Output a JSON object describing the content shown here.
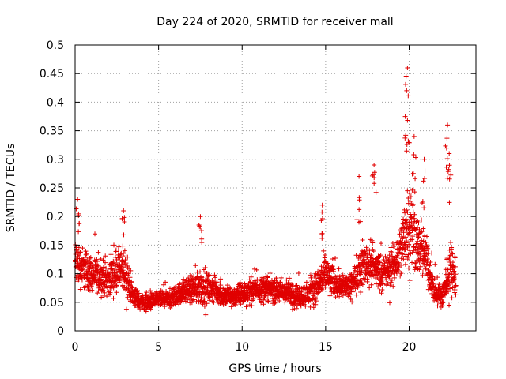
{
  "chart_data": {
    "type": "scatter",
    "title": "Day 224 of 2020, SRMTID for receiver mall",
    "xlabel": "GPS time / hours",
    "ylabel": "SRMTID / TECUs",
    "xlim": [
      0,
      24
    ],
    "ylim": [
      0,
      0.5
    ],
    "xticks": [
      0,
      5,
      10,
      15,
      20
    ],
    "yticks": [
      0,
      0.05,
      0.1,
      0.15,
      0.2,
      0.25,
      0.3,
      0.35,
      0.4,
      0.45,
      0.5
    ],
    "grid": true,
    "marker": "+",
    "color": "#e00000",
    "envelope": {
      "x": [
        0.0,
        0.5,
        1.0,
        1.5,
        2.0,
        2.5,
        3.0,
        3.5,
        4.0,
        4.5,
        5.0,
        5.5,
        6.0,
        6.5,
        7.0,
        7.5,
        8.0,
        8.5,
        9.0,
        9.5,
        10.0,
        10.5,
        11.0,
        11.5,
        12.0,
        12.5,
        13.0,
        13.5,
        14.0,
        14.5,
        15.0,
        15.5,
        16.0,
        16.5,
        17.0,
        17.5,
        18.0,
        18.5,
        19.0,
        19.5,
        20.0,
        20.5,
        21.0,
        21.5,
        22.0,
        22.5,
        22.8
      ],
      "mean": [
        0.12,
        0.11,
        0.1,
        0.095,
        0.09,
        0.11,
        0.1,
        0.06,
        0.05,
        0.05,
        0.055,
        0.055,
        0.06,
        0.07,
        0.075,
        0.08,
        0.075,
        0.07,
        0.06,
        0.06,
        0.065,
        0.07,
        0.075,
        0.075,
        0.07,
        0.068,
        0.065,
        0.06,
        0.065,
        0.08,
        0.1,
        0.085,
        0.08,
        0.075,
        0.11,
        0.12,
        0.11,
        0.1,
        0.11,
        0.14,
        0.2,
        0.15,
        0.13,
        0.07,
        0.06,
        0.12,
        0.09
      ],
      "spread": [
        0.06,
        0.05,
        0.045,
        0.04,
        0.04,
        0.05,
        0.05,
        0.025,
        0.02,
        0.02,
        0.02,
        0.02,
        0.025,
        0.03,
        0.035,
        0.05,
        0.035,
        0.03,
        0.025,
        0.025,
        0.03,
        0.03,
        0.03,
        0.03,
        0.03,
        0.03,
        0.03,
        0.025,
        0.03,
        0.04,
        0.05,
        0.035,
        0.03,
        0.03,
        0.05,
        0.06,
        0.05,
        0.04,
        0.05,
        0.07,
        0.12,
        0.07,
        0.06,
        0.03,
        0.03,
        0.07,
        0.04
      ]
    },
    "peaks": [
      {
        "x": 0.15,
        "y": 0.23
      },
      {
        "x": 2.9,
        "y": 0.21
      },
      {
        "x": 7.5,
        "y": 0.2
      },
      {
        "x": 14.8,
        "y": 0.22
      },
      {
        "x": 17.0,
        "y": 0.27
      },
      {
        "x": 17.9,
        "y": 0.29
      },
      {
        "x": 19.9,
        "y": 0.46
      },
      {
        "x": 19.85,
        "y": 0.42
      },
      {
        "x": 20.3,
        "y": 0.34
      },
      {
        "x": 20.9,
        "y": 0.3
      },
      {
        "x": 22.3,
        "y": 0.36
      },
      {
        "x": 22.4,
        "y": 0.31
      }
    ],
    "sample_interval_hours": 0.008
  }
}
